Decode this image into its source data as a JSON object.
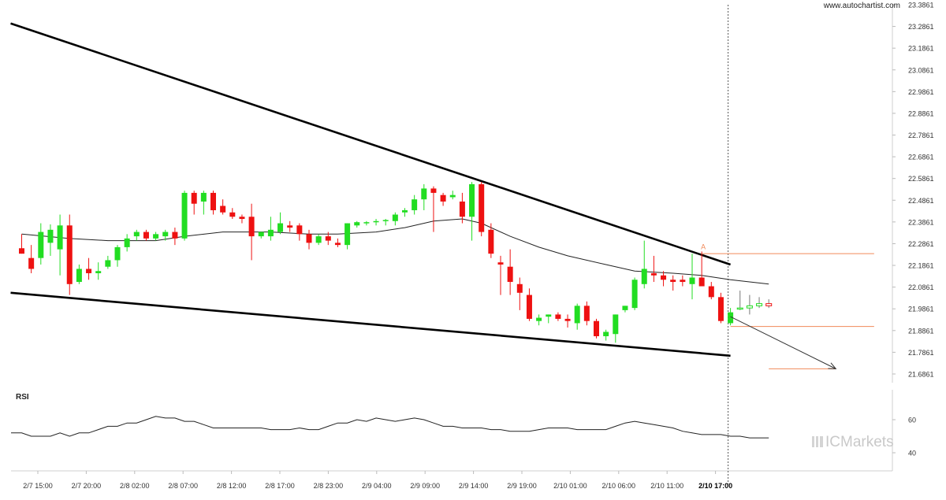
{
  "header": {
    "site": "www.autochartist.com"
  },
  "brand": {
    "name": "ICMarkets"
  },
  "rsi_panel": {
    "label": "RSI",
    "ticks": [
      "60",
      "40"
    ]
  },
  "chart_data": {
    "type": "candlestick",
    "x_ticks": [
      "2/7 15:00",
      "2/7 20:00",
      "2/8 02:00",
      "2/8 07:00",
      "2/8 12:00",
      "2/8 17:00",
      "2/8 23:00",
      "2/9 04:00",
      "2/9 09:00",
      "2/9 14:00",
      "2/9 19:00",
      "2/10 01:00",
      "2/10 06:00",
      "2/10 11:00",
      "2/10 17:00"
    ],
    "highlight_tick": "2/10 17:00",
    "y_ticks": [
      "23.3861",
      "23.2861",
      "23.1861",
      "23.0861",
      "22.9861",
      "22.8861",
      "22.7861",
      "22.6861",
      "22.5861",
      "22.4861",
      "22.3861",
      "22.2861",
      "22.1861",
      "22.0861",
      "21.9861",
      "21.8861",
      "21.7861",
      "21.6861"
    ],
    "ylim": [
      21.6461,
      23.3861
    ],
    "candles": [
      [
        22.265,
        22.33,
        22.24,
        22.24
      ],
      [
        22.22,
        22.28,
        22.15,
        22.17
      ],
      [
        22.22,
        22.38,
        22.19,
        22.34
      ],
      [
        22.29,
        22.375,
        22.23,
        22.35
      ],
      [
        22.26,
        22.42,
        22.14,
        22.37
      ],
      [
        22.37,
        22.42,
        22.05,
        22.1
      ],
      [
        22.11,
        22.19,
        22.1,
        22.17
      ],
      [
        22.17,
        22.22,
        22.12,
        22.15
      ],
      [
        22.15,
        22.2,
        22.12,
        22.16
      ],
      [
        22.18,
        22.23,
        22.17,
        22.21
      ],
      [
        22.21,
        22.28,
        22.18,
        22.27
      ],
      [
        22.27,
        22.33,
        22.25,
        22.31
      ],
      [
        22.32,
        22.35,
        22.3,
        22.34
      ],
      [
        22.34,
        22.35,
        22.3,
        22.31
      ],
      [
        22.31,
        22.34,
        22.3,
        22.33
      ],
      [
        22.32,
        22.35,
        22.3,
        22.34
      ],
      [
        22.34,
        22.36,
        22.28,
        22.31
      ],
      [
        22.31,
        22.53,
        22.3,
        22.52
      ],
      [
        22.52,
        22.53,
        22.42,
        22.47
      ],
      [
        22.48,
        22.53,
        22.42,
        22.52
      ],
      [
        22.52,
        22.53,
        22.42,
        22.44
      ],
      [
        22.46,
        22.49,
        22.42,
        22.43
      ],
      [
        22.43,
        22.45,
        22.4,
        22.41
      ],
      [
        22.41,
        22.42,
        22.38,
        22.4
      ],
      [
        22.41,
        22.47,
        22.21,
        22.32
      ],
      [
        22.32,
        22.34,
        22.31,
        22.34
      ],
      [
        22.32,
        22.41,
        22.3,
        22.35
      ],
      [
        22.34,
        22.43,
        22.33,
        22.38
      ],
      [
        22.37,
        22.39,
        22.34,
        22.36
      ],
      [
        22.37,
        22.38,
        22.3,
        22.33
      ],
      [
        22.33,
        22.35,
        22.26,
        22.29
      ],
      [
        22.29,
        22.33,
        22.28,
        22.32
      ],
      [
        22.32,
        22.34,
        22.28,
        22.3
      ],
      [
        22.29,
        22.31,
        22.27,
        22.28
      ],
      [
        22.28,
        22.38,
        22.26,
        22.38
      ],
      [
        22.37,
        22.39,
        22.36,
        22.385
      ],
      [
        22.38,
        22.39,
        22.37,
        22.385
      ],
      [
        22.385,
        22.4,
        22.37,
        22.39
      ],
      [
        22.39,
        22.4,
        22.37,
        22.395
      ],
      [
        22.39,
        22.43,
        22.37,
        22.42
      ],
      [
        22.43,
        22.45,
        22.41,
        22.44
      ],
      [
        22.44,
        22.51,
        22.42,
        22.49
      ],
      [
        22.49,
        22.56,
        22.44,
        22.54
      ],
      [
        22.54,
        22.55,
        22.34,
        22.52
      ],
      [
        22.51,
        22.52,
        22.46,
        22.48
      ],
      [
        22.5,
        22.53,
        22.49,
        22.51
      ],
      [
        22.48,
        22.52,
        22.38,
        22.41
      ],
      [
        22.41,
        22.57,
        22.3,
        22.56
      ],
      [
        22.56,
        22.57,
        22.32,
        22.34
      ],
      [
        22.35,
        22.38,
        22.22,
        22.24
      ],
      [
        22.2,
        22.23,
        22.05,
        22.19
      ],
      [
        22.18,
        22.26,
        22.05,
        22.11
      ],
      [
        22.1,
        22.13,
        21.98,
        22.06
      ],
      [
        22.05,
        22.08,
        21.93,
        21.94
      ],
      [
        21.93,
        21.96,
        21.91,
        21.945
      ],
      [
        21.95,
        21.96,
        21.92,
        21.96
      ],
      [
        21.96,
        21.97,
        21.93,
        21.94
      ],
      [
        21.94,
        21.96,
        21.9,
        21.93
      ],
      [
        21.92,
        22.01,
        21.89,
        22.0
      ],
      [
        22.0,
        22.02,
        21.91,
        21.93
      ],
      [
        21.93,
        21.94,
        21.85,
        21.86
      ],
      [
        21.86,
        21.89,
        21.84,
        21.88
      ],
      [
        21.87,
        21.96,
        21.83,
        21.96
      ],
      [
        21.98,
        22.0,
        21.97,
        22.0
      ],
      [
        21.99,
        22.13,
        21.98,
        22.12
      ],
      [
        22.1,
        22.3,
        22.08,
        22.17
      ],
      [
        22.15,
        22.23,
        22.11,
        22.14
      ],
      [
        22.14,
        22.16,
        22.09,
        22.12
      ],
      [
        22.12,
        22.14,
        22.07,
        22.11
      ],
      [
        22.12,
        22.14,
        22.09,
        22.11
      ],
      [
        22.1,
        22.24,
        22.03,
        22.13
      ],
      [
        22.13,
        22.25,
        22.1,
        22.09
      ],
      [
        22.09,
        22.11,
        22.03,
        22.04
      ],
      [
        22.04,
        22.06,
        21.92,
        21.93
      ],
      [
        21.92,
        21.99,
        21.91,
        21.97
      ],
      [
        21.99,
        22.07,
        21.98,
        21.99
      ],
      [
        21.99,
        22.05,
        21.96,
        22.0
      ],
      [
        22.0,
        22.04,
        21.99,
        22.01
      ],
      [
        22.01,
        22.03,
        21.99,
        22.0
      ]
    ],
    "moving_average": [
      [
        0,
        22.33
      ],
      [
        5,
        22.31
      ],
      [
        9,
        22.3
      ],
      [
        14,
        22.3
      ],
      [
        17,
        22.32
      ],
      [
        21,
        22.34
      ],
      [
        26,
        22.34
      ],
      [
        30,
        22.33
      ],
      [
        33,
        22.33
      ],
      [
        37,
        22.34
      ],
      [
        40,
        22.36
      ],
      [
        43,
        22.39
      ],
      [
        46,
        22.4
      ],
      [
        48,
        22.38
      ],
      [
        51,
        22.32
      ],
      [
        54,
        22.27
      ],
      [
        57,
        22.23
      ],
      [
        61,
        22.19
      ],
      [
        64,
        22.16
      ],
      [
        68,
        22.15
      ],
      [
        71,
        22.14
      ],
      [
        74,
        22.12
      ],
      [
        78,
        22.1
      ]
    ],
    "forecast_start_index": 74,
    "trendlines": [
      {
        "name": "resistance",
        "from": [
          0,
          23.3
        ],
        "to": [
          74,
          22.19
        ]
      },
      {
        "name": "support",
        "from": [
          0,
          22.06
        ],
        "to": [
          74,
          21.77
        ]
      }
    ],
    "forecast_arrow": {
      "from": [
        74,
        21.95
      ],
      "to": [
        85,
        21.71
      ]
    },
    "levels": [
      {
        "value": 22.24,
        "from": 71,
        "to": 89
      },
      {
        "value": 21.905,
        "from": 74,
        "to": 89
      },
      {
        "value": 21.71,
        "from": 78,
        "to": 85
      }
    ],
    "point_label": {
      "text": "A",
      "index": 71,
      "value": 22.25
    },
    "rsi": {
      "ylim": [
        30,
        70
      ],
      "ticks": [
        60,
        40
      ],
      "values": [
        52,
        50,
        50,
        50,
        52,
        50,
        52,
        52,
        54,
        56,
        56,
        58,
        58,
        60,
        62,
        61,
        61,
        59,
        59,
        57,
        55,
        55,
        55,
        55,
        55,
        55,
        54,
        54,
        54,
        55,
        54,
        54,
        56,
        58,
        58,
        60,
        59,
        61,
        60,
        59,
        60,
        61,
        60,
        58,
        56,
        56,
        55,
        55,
        55,
        54,
        54,
        53,
        53,
        53,
        54,
        55,
        55,
        55,
        54,
        54,
        54,
        54,
        56,
        58,
        59,
        58,
        57,
        56,
        55,
        53,
        52,
        51,
        51,
        51,
        50,
        50,
        49,
        49,
        49
      ]
    }
  }
}
